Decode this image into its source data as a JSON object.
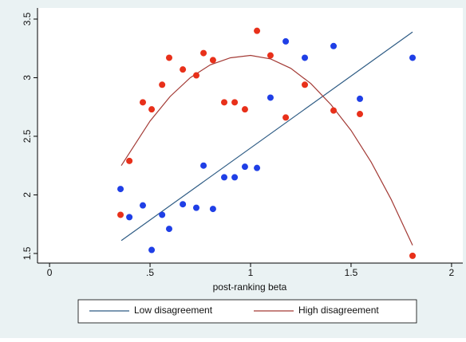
{
  "chart_data": {
    "type": "scatter",
    "x_label": "post-ranking beta",
    "xlim": [
      -0.06,
      2.056
    ],
    "ylim": [
      1.418,
      3.595
    ],
    "xticks": [
      0,
      {
        "value": 0.5,
        "label": ".5"
      },
      1,
      1.5,
      2
    ],
    "yticks": [
      1.5,
      2,
      2.5,
      3,
      3.5
    ],
    "grid": false,
    "legend": "bottom",
    "series": [
      {
        "color": "#1f3fe6",
        "x": [
          0.353,
          0.397,
          0.464,
          0.508,
          0.56,
          0.595,
          0.663,
          0.73,
          0.766,
          0.813,
          0.869,
          0.921,
          0.972,
          1.032,
          1.099,
          1.175,
          1.27,
          1.413,
          1.544,
          1.806
        ],
        "values": [
          2.05,
          1.81,
          1.91,
          1.53,
          1.83,
          1.71,
          1.92,
          1.89,
          2.25,
          1.88,
          2.15,
          2.15,
          2.24,
          2.23,
          2.83,
          3.31,
          3.17,
          3.27,
          2.82,
          3.17
        ]
      },
      {
        "color": "#e8301a",
        "x": [
          0.353,
          0.397,
          0.464,
          0.508,
          0.56,
          0.595,
          0.663,
          0.73,
          0.766,
          0.813,
          0.869,
          0.921,
          0.972,
          1.032,
          1.099,
          1.175,
          1.27,
          1.413,
          1.544,
          1.806
        ],
        "values": [
          1.83,
          2.29,
          2.79,
          2.73,
          2.94,
          3.17,
          3.07,
          3.02,
          3.21,
          3.15,
          2.79,
          2.79,
          2.73,
          3.4,
          3.19,
          2.66,
          2.94,
          2.72,
          2.69,
          1.48
        ]
      }
    ],
    "fits": [
      {
        "name": "Low disagreement",
        "color": "#2d5b84",
        "x": [
          0.357,
          1.806
        ],
        "values": [
          1.61,
          3.39
        ]
      },
      {
        "name": "High disagreement",
        "color": "#a33a35",
        "x": [
          0.357,
          0.5,
          0.6,
          0.7,
          0.8,
          0.9,
          1.0,
          1.1,
          1.2,
          1.3,
          1.4,
          1.5,
          1.6,
          1.7,
          1.806
        ],
        "values": [
          2.25,
          2.63,
          2.84,
          3.0,
          3.11,
          3.17,
          3.19,
          3.16,
          3.08,
          2.95,
          2.77,
          2.55,
          2.28,
          1.96,
          1.57
        ]
      }
    ]
  }
}
